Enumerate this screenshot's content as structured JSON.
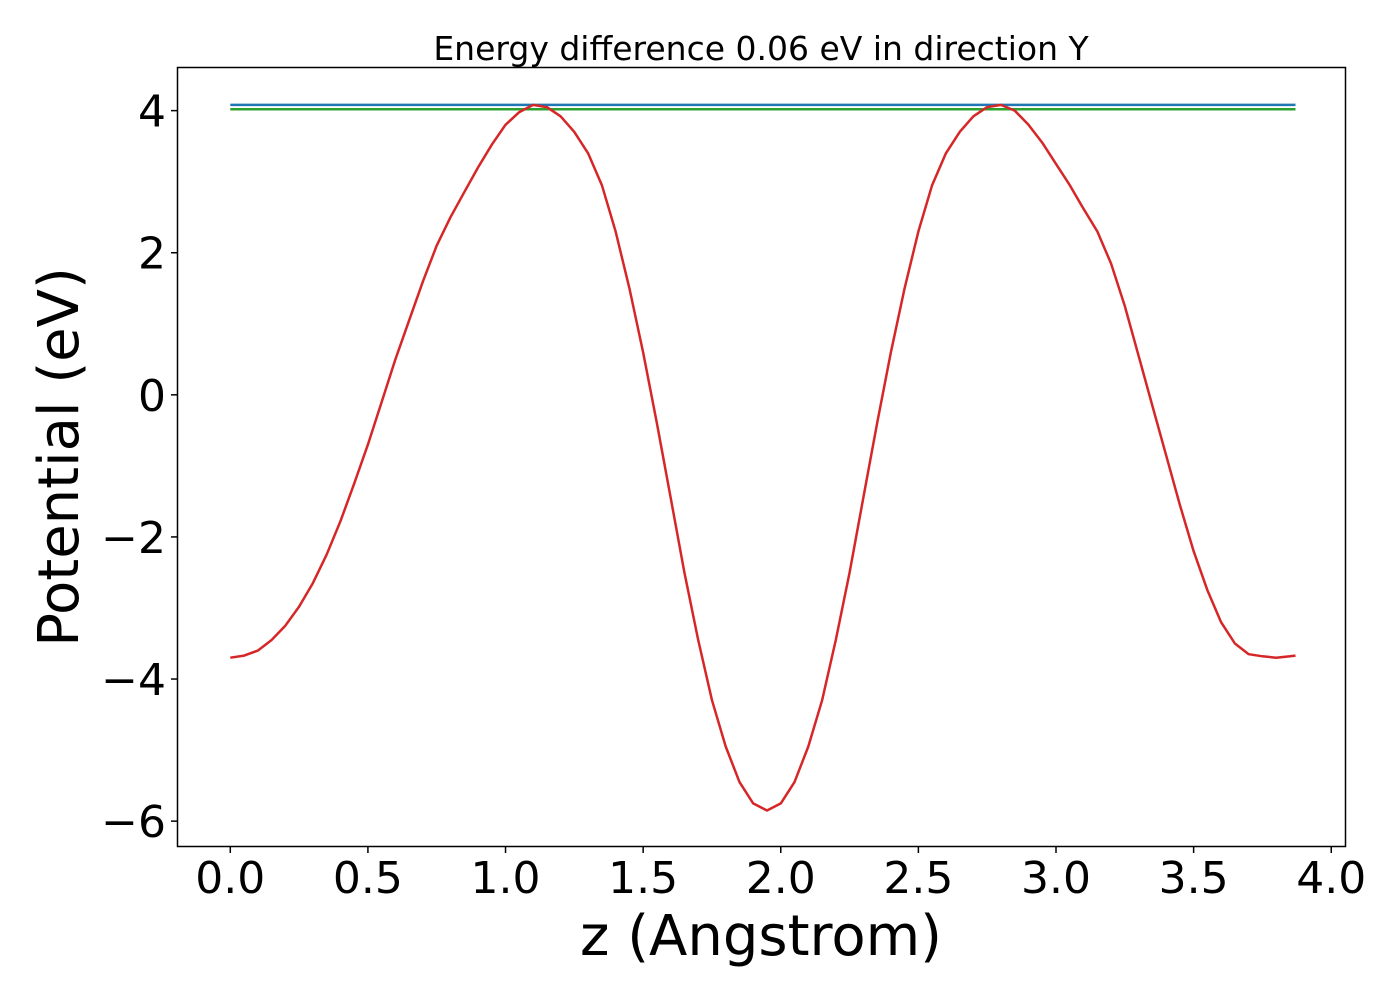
{
  "chart_data": {
    "type": "line",
    "title": "Energy difference 0.06 eV in direction Y",
    "xlabel": "z (Angstrom)",
    "ylabel": "Potential (eV)",
    "xlim": [
      -0.19,
      4.05
    ],
    "ylim": [
      -6.35,
      4.6
    ],
    "xticks": [
      "0.0",
      "0.5",
      "1.0",
      "1.5",
      "2.0",
      "2.5",
      "3.0",
      "3.5",
      "4.0"
    ],
    "yticks": [
      "−6",
      "−4",
      "−2",
      "0",
      "2",
      "4"
    ],
    "grid": false,
    "series": [
      {
        "color": "#1f77b4",
        "x": [
          0.0,
          3.87
        ],
        "y": [
          4.08,
          4.08
        ]
      },
      {
        "color": "#2ca02c",
        "x": [
          0.0,
          3.87
        ],
        "y": [
          4.02,
          4.02
        ]
      },
      {
        "color": "#d62728",
        "x": [
          0.0,
          0.05,
          0.1,
          0.15,
          0.2,
          0.25,
          0.3,
          0.35,
          0.4,
          0.45,
          0.5,
          0.55,
          0.6,
          0.65,
          0.7,
          0.75,
          0.8,
          0.85,
          0.9,
          0.95,
          1.0,
          1.05,
          1.1,
          1.15,
          1.2,
          1.25,
          1.3,
          1.35,
          1.4,
          1.45,
          1.5,
          1.55,
          1.6,
          1.65,
          1.7,
          1.75,
          1.8,
          1.85,
          1.9,
          1.95,
          2.0,
          2.05,
          2.1,
          2.15,
          2.2,
          2.25,
          2.3,
          2.35,
          2.4,
          2.45,
          2.5,
          2.55,
          2.6,
          2.65,
          2.7,
          2.75,
          2.8,
          2.85,
          2.9,
          2.95,
          3.0,
          3.05,
          3.1,
          3.15,
          3.2,
          3.25,
          3.3,
          3.35,
          3.4,
          3.45,
          3.5,
          3.55,
          3.6,
          3.65,
          3.7,
          3.75,
          3.8,
          3.85,
          3.87
        ],
        "y": [
          -3.7,
          -3.67,
          -3.6,
          -3.45,
          -3.25,
          -2.98,
          -2.65,
          -2.25,
          -1.78,
          -1.25,
          -0.7,
          -0.1,
          0.5,
          1.05,
          1.6,
          2.1,
          2.5,
          2.85,
          3.2,
          3.52,
          3.8,
          3.98,
          4.08,
          4.05,
          3.92,
          3.7,
          3.4,
          2.95,
          2.3,
          1.5,
          0.6,
          -0.4,
          -1.45,
          -2.5,
          -3.45,
          -4.3,
          -4.95,
          -5.45,
          -5.75,
          -5.85,
          -5.75,
          -5.45,
          -4.95,
          -4.3,
          -3.45,
          -2.5,
          -1.45,
          -0.4,
          0.6,
          1.5,
          2.3,
          2.95,
          3.4,
          3.7,
          3.92,
          4.05,
          4.08,
          4.0,
          3.8,
          3.55,
          3.25,
          2.95,
          2.62,
          2.3,
          1.85,
          1.25,
          0.55,
          -0.15,
          -0.85,
          -1.55,
          -2.2,
          -2.75,
          -3.2,
          -3.5,
          -3.65,
          -3.68,
          -3.7,
          -3.68,
          -3.67
        ]
      }
    ]
  }
}
